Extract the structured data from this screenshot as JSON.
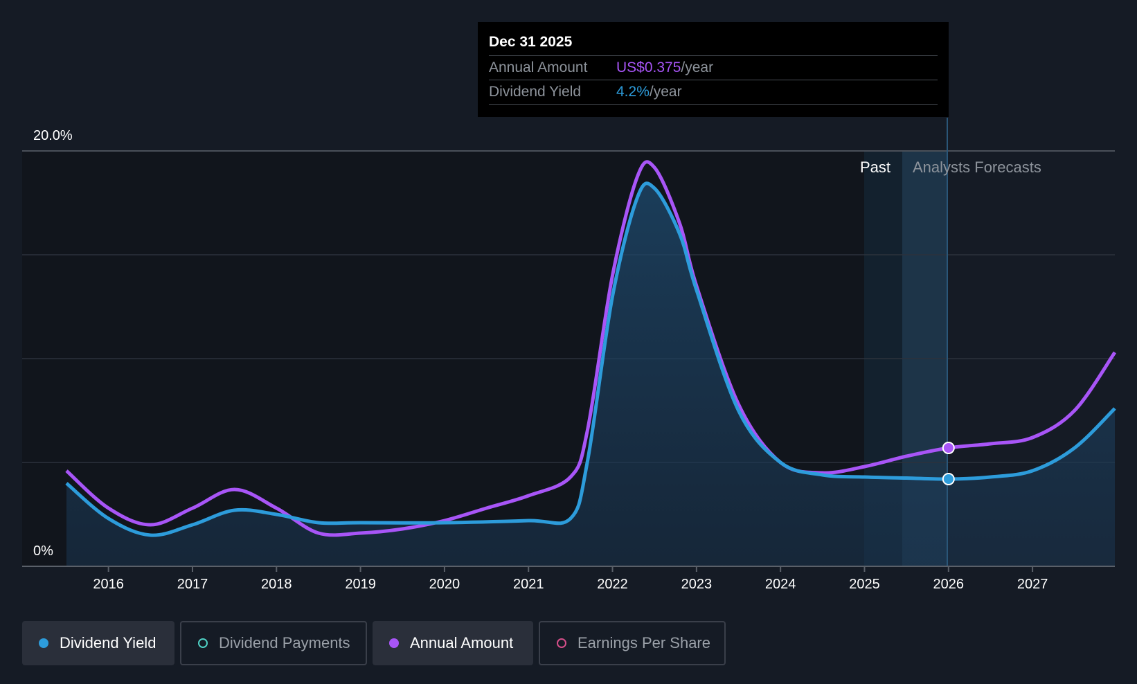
{
  "tooltip": {
    "date": "Dec 31 2025",
    "annual_label": "Annual Amount",
    "annual_value": "US$0.375",
    "annual_unit": "/year",
    "yield_label": "Dividend Yield",
    "yield_value": "4.2%",
    "yield_unit": "/year"
  },
  "region_labels": {
    "past": "Past",
    "forecast": "Analysts Forecasts"
  },
  "legend": [
    {
      "label": "Dividend Yield",
      "color": "#2d9cdb",
      "active": true,
      "filled": true
    },
    {
      "label": "Dividend Payments",
      "color": "#4fd1c5",
      "active": false,
      "filled": false
    },
    {
      "label": "Annual Amount",
      "color": "#a855f7",
      "active": true,
      "filled": true
    },
    {
      "label": "Earnings Per Share",
      "color": "#d64f8a",
      "active": false,
      "filled": false
    }
  ],
  "chart_data": {
    "type": "line",
    "y_tick_labels": [
      "20.0%",
      "0%"
    ],
    "ylim": [
      0,
      20
    ],
    "xlim": [
      2015.5,
      2027.98
    ],
    "x_ticks": [
      2016,
      2017,
      2018,
      2019,
      2020,
      2021,
      2022,
      2023,
      2024,
      2025,
      2026,
      2027
    ],
    "grid": true,
    "past_forecast_split": 2026,
    "series": [
      {
        "name": "Dividend Yield",
        "color": "#2d9cdb",
        "unit": "%",
        "area": true,
        "points": [
          [
            2015.5,
            4.0
          ],
          [
            2016.0,
            2.3
          ],
          [
            2016.5,
            1.5
          ],
          [
            2017.0,
            2.0
          ],
          [
            2017.5,
            2.7
          ],
          [
            2018.0,
            2.5
          ],
          [
            2018.5,
            2.1
          ],
          [
            2019.0,
            2.1
          ],
          [
            2020.0,
            2.1
          ],
          [
            2021.0,
            2.2
          ],
          [
            2021.5,
            2.3
          ],
          [
            2021.7,
            5.0
          ],
          [
            2022.0,
            13.0
          ],
          [
            2022.3,
            17.8
          ],
          [
            2022.5,
            18.2
          ],
          [
            2022.8,
            16.0
          ],
          [
            2023.0,
            13.3
          ],
          [
            2023.5,
            7.5
          ],
          [
            2024.0,
            5.0
          ],
          [
            2024.5,
            4.4
          ],
          [
            2025.0,
            4.3
          ],
          [
            2025.5,
            4.25
          ],
          [
            2026.0,
            4.2
          ],
          [
            2026.5,
            4.3
          ],
          [
            2027.0,
            4.6
          ],
          [
            2027.5,
            5.7
          ],
          [
            2027.98,
            7.6
          ]
        ]
      },
      {
        "name": "Annual Amount",
        "color": "#a855f7",
        "unit": "US$",
        "area": false,
        "points": [
          [
            2015.5,
            4.6
          ],
          [
            2016.0,
            2.8
          ],
          [
            2016.5,
            2.0
          ],
          [
            2017.0,
            2.8
          ],
          [
            2017.5,
            3.7
          ],
          [
            2018.0,
            2.8
          ],
          [
            2018.5,
            1.6
          ],
          [
            2019.0,
            1.6
          ],
          [
            2019.5,
            1.8
          ],
          [
            2020.0,
            2.2
          ],
          [
            2020.5,
            2.8
          ],
          [
            2021.0,
            3.4
          ],
          [
            2021.5,
            4.3
          ],
          [
            2021.7,
            6.5
          ],
          [
            2022.0,
            14.0
          ],
          [
            2022.3,
            18.8
          ],
          [
            2022.5,
            19.2
          ],
          [
            2022.8,
            16.5
          ],
          [
            2023.0,
            13.5
          ],
          [
            2023.5,
            7.8
          ],
          [
            2024.0,
            5.0
          ],
          [
            2024.5,
            4.5
          ],
          [
            2025.0,
            4.8
          ],
          [
            2025.5,
            5.3
          ],
          [
            2026.0,
            5.7
          ],
          [
            2026.5,
            5.9
          ],
          [
            2027.0,
            6.2
          ],
          [
            2027.5,
            7.5
          ],
          [
            2027.98,
            10.3
          ]
        ]
      }
    ],
    "highlight_x": 2026
  }
}
